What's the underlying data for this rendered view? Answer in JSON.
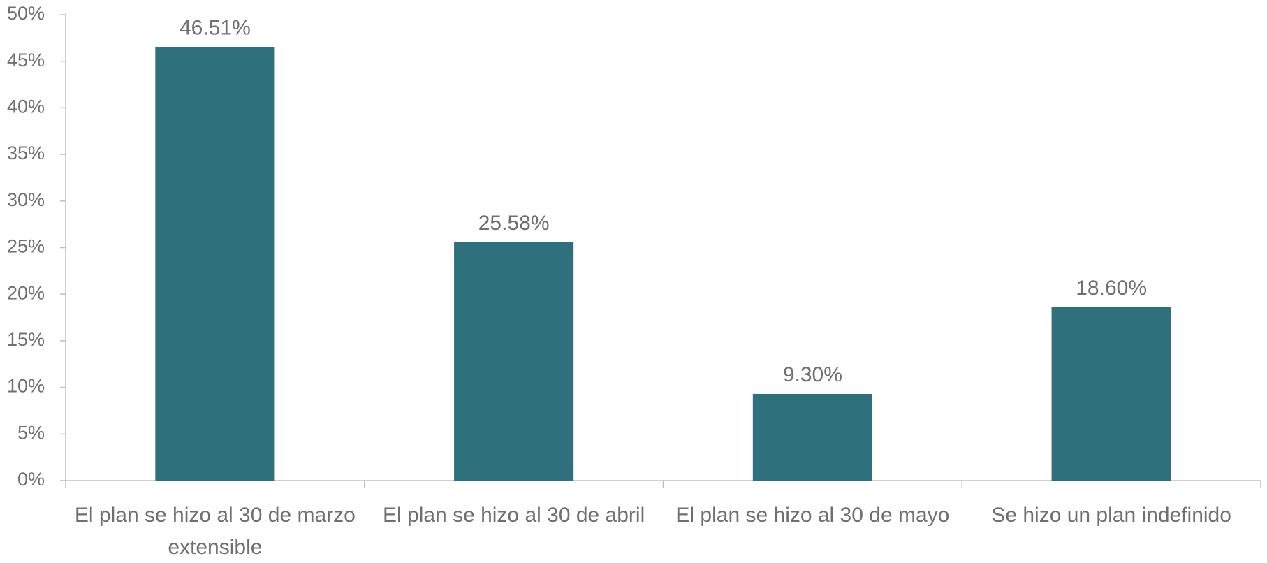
{
  "chart_data": {
    "type": "bar",
    "categories": [
      "El plan se hizo al 30 de marzo extensible",
      "El plan se hizo al 30 de abril",
      "El plan se hizo al 30 de mayo",
      "Se hizo un plan indefinido"
    ],
    "values": [
      46.51,
      25.58,
      9.3,
      18.6
    ],
    "value_labels": [
      "46.51%",
      "25.58%",
      "9.30%",
      "18.60%"
    ],
    "color": "#2e717c",
    "ylim": [
      0,
      50
    ],
    "yticks": [
      {
        "value": 0,
        "label": "0%"
      },
      {
        "value": 5,
        "label": "5%"
      },
      {
        "value": 10,
        "label": "10%"
      },
      {
        "value": 15,
        "label": "15%"
      },
      {
        "value": 20,
        "label": "20%"
      },
      {
        "value": 25,
        "label": "25%"
      },
      {
        "value": 30,
        "label": "30%"
      },
      {
        "value": 35,
        "label": "35%"
      },
      {
        "value": 40,
        "label": "40%"
      },
      {
        "value": 45,
        "label": "45%"
      },
      {
        "value": 50,
        "label": "50%"
      }
    ],
    "grid": false
  }
}
